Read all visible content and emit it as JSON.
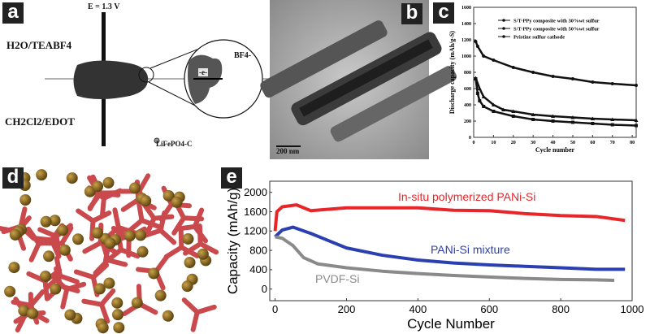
{
  "panels": {
    "a": "a",
    "b": "b",
    "c": "c",
    "d": "d",
    "e": "e"
  },
  "panel_a": {
    "voltage": "E = 1.3 V",
    "top_solvent": "H2O/TEABF4",
    "bottom_solvent": "CH2Cl2/EDOT",
    "anion": "BF4-",
    "electron": "-e-",
    "particle": "LiFePO4-C"
  },
  "panel_b": {
    "scale_bar": "200 nm"
  },
  "colors": {
    "red": "#e8262a",
    "blue": "#2b3fb0",
    "grey": "#8a8a8a",
    "rod": "#c9494d",
    "sphere": "#8b6a22"
  },
  "chart_data": [
    {
      "panel": "c",
      "type": "line",
      "xlabel": "Cycle number",
      "ylabel": "Discharge capacity (mAh/g-S)",
      "xlim": [
        0,
        82
      ],
      "ylim": [
        0,
        1600
      ],
      "xticks": [
        0,
        10,
        20,
        30,
        40,
        50,
        60,
        70,
        80
      ],
      "yticks": [
        0,
        200,
        400,
        600,
        800,
        1000,
        1200,
        1400,
        1600
      ],
      "legend": "top-right",
      "series": [
        {
          "name": "S/T-PPy composite with 30%wt sulfur",
          "marker": "circle",
          "x": [
            1,
            2,
            5,
            10,
            20,
            30,
            40,
            50,
            60,
            70,
            82
          ],
          "y": [
            1180,
            1120,
            1000,
            950,
            860,
            800,
            750,
            720,
            680,
            660,
            640
          ]
        },
        {
          "name": "S/T-PPy composite with 50%wt sulfur",
          "marker": "square",
          "x": [
            1,
            2,
            3,
            5,
            10,
            20,
            30,
            40,
            50,
            60,
            70,
            82
          ],
          "y": [
            720,
            540,
            450,
            380,
            320,
            260,
            220,
            200,
            185,
            170,
            155,
            145
          ]
        },
        {
          "name": "Pristine sulfur cathode",
          "marker": "triangle",
          "x": [
            1,
            3,
            5,
            10,
            15,
            20,
            30,
            40,
            50,
            60,
            70,
            82
          ],
          "y": [
            730,
            600,
            500,
            400,
            340,
            320,
            280,
            260,
            245,
            230,
            220,
            210
          ]
        }
      ]
    },
    {
      "panel": "e",
      "type": "line",
      "xlabel": "Cycle Number",
      "ylabel": "Capacity (mAh/g)",
      "xlim": [
        -15,
        1000
      ],
      "ylim": [
        -240,
        2230
      ],
      "xticks": [
        0,
        200,
        400,
        600,
        800,
        1000
      ],
      "yticks": [
        0,
        400,
        800,
        1200,
        1600,
        2000
      ],
      "series": [
        {
          "name": "In-situ polymerized PANi-Si",
          "color": "#e8262a",
          "x": [
            0,
            5,
            20,
            60,
            100,
            200,
            300,
            400,
            500,
            600,
            700,
            800,
            900,
            980
          ],
          "y": [
            1200,
            1600,
            1700,
            1740,
            1620,
            1680,
            1680,
            1680,
            1630,
            1620,
            1560,
            1520,
            1500,
            1420
          ]
        },
        {
          "name": "PANi-Si mixture",
          "color": "#2b3fb0",
          "x": [
            0,
            20,
            50,
            100,
            150,
            200,
            300,
            400,
            500,
            600,
            700,
            800,
            900,
            980
          ],
          "y": [
            1080,
            1220,
            1280,
            1150,
            1000,
            850,
            700,
            600,
            540,
            500,
            470,
            440,
            410,
            410
          ]
        },
        {
          "name": "PVDF-Si",
          "color": "#8a8a8a",
          "x": [
            0,
            20,
            50,
            80,
            120,
            200,
            300,
            400,
            500,
            600,
            700,
            800,
            900,
            950
          ],
          "y": [
            1080,
            1050,
            900,
            650,
            520,
            440,
            370,
            320,
            280,
            250,
            220,
            200,
            190,
            180
          ]
        }
      ]
    }
  ]
}
